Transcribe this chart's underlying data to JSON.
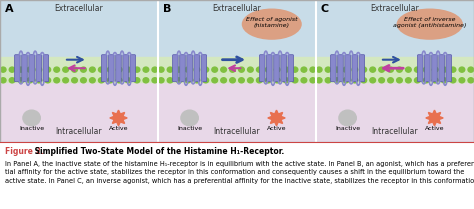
{
  "title_bold": "Figure 2.",
  "title_text": " Simplified Two-State Model of the Histamine H",
  "title_subscript": "1",
  "title_suffix": "-Receptor.",
  "caption_line1": "In Panel A, the inactive state of the histamine H",
  "caption_sub1": "1",
  "caption_line1b": "-receptor is in equilibrium with the active state. In Panel B, an agonist, which has a preferen-",
  "caption_line2": "tial affinity for the active state, stabilizes the receptor in this conformation and consequently causes a shift in the equilibrium toward the",
  "caption_line3": "active state. In Panel C, an inverse agonist, which has a preferential affinity for the inactive state, stabilizes the receptor in this conformation",
  "panel_labels": [
    "A",
    "B",
    "C"
  ],
  "extracellular_label": "Extracellular",
  "intracellular_label": "Intracellular",
  "inactive_label": "Inactive",
  "active_label": "Active",
  "panel_b_annotation": "Effect of agonist\n(histamine)",
  "panel_c_annotation": "Effect of inverse\nagonist (antihistamine)",
  "bg_extracellular": "#c8dce8",
  "bg_membrane": "#d4e8c0",
  "bg_intracellular": "#e8d8e8",
  "bg_caption": "#fdf5f0",
  "border_color": "#cc4444",
  "receptor_color": "#8888cc",
  "inactive_ball_color": "#c0c0c0",
  "active_ball_color": "#e87050",
  "annotation_b_color": "#c86030",
  "annotation_c_color": "#c86030",
  "arrow_blue": "#3050a0",
  "arrow_pink": "#c040a0",
  "figure_width": 4.74,
  "figure_height": 2.09,
  "dpi": 100
}
